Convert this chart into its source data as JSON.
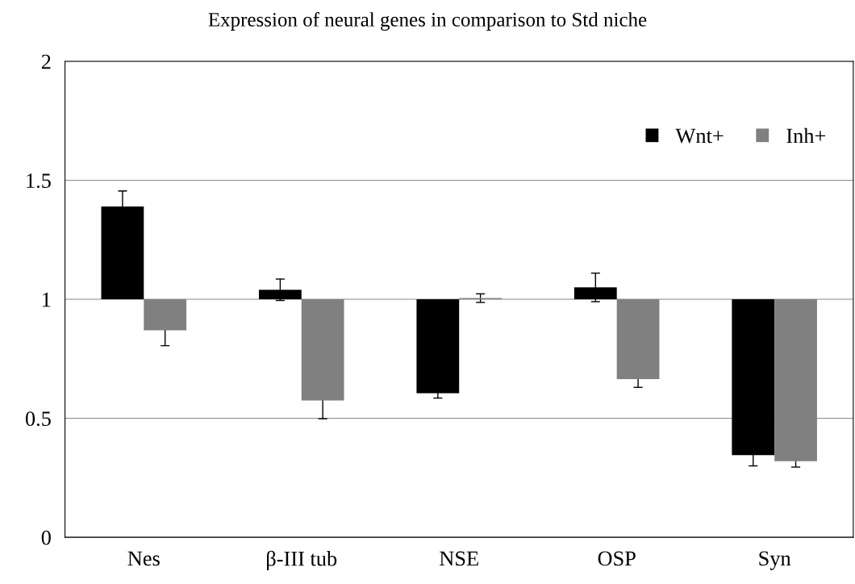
{
  "chart_data": {
    "type": "bar",
    "title": "Expression of neural genes in comparison to Std niche",
    "categories": [
      "Nes",
      "β-III tub",
      "NSE",
      "OSP",
      "Syn"
    ],
    "series": [
      {
        "name": "Wnt+",
        "color": "#000000",
        "base": [
          1,
          1,
          1,
          1,
          1
        ],
        "values": [
          0.39,
          0.04,
          -0.395,
          0.05,
          -0.655
        ],
        "errors": [
          0.065,
          0.045,
          0.02,
          0.06,
          0.045
        ]
      },
      {
        "name": "Inh+",
        "color": "#808080",
        "base": [
          1,
          1,
          1,
          1,
          1
        ],
        "values": [
          -0.13,
          -0.425,
          0.005,
          -0.335,
          -0.68
        ],
        "errors": [
          0.065,
          0.077,
          0.018,
          0.035,
          0.025
        ]
      }
    ],
    "ylim": [
      0,
      2
    ],
    "yticks": [
      0,
      0.5,
      1,
      1.5,
      2
    ],
    "grid": "y",
    "legend": "top right"
  }
}
